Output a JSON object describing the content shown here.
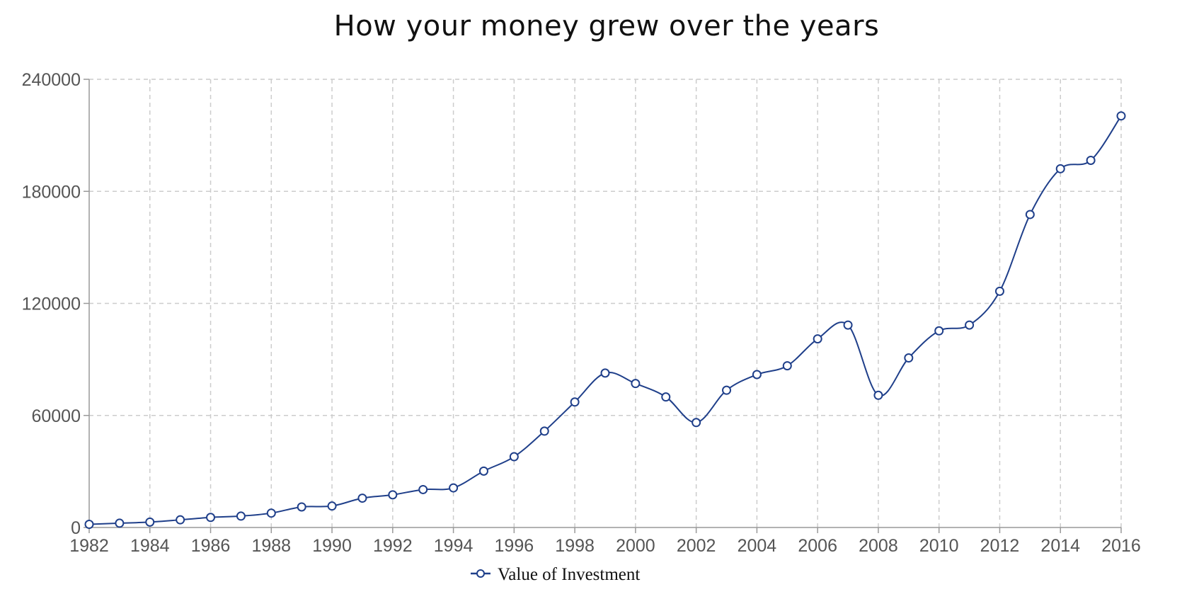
{
  "chart_data": {
    "type": "line",
    "title": "How your money grew over the years",
    "xlabel": "",
    "ylabel": "",
    "xlim": [
      1982,
      2016
    ],
    "ylim": [
      0,
      240000
    ],
    "x_ticks": [
      1982,
      1984,
      1986,
      1988,
      1990,
      1992,
      1994,
      1996,
      1998,
      2000,
      2002,
      2004,
      2006,
      2008,
      2010,
      2012,
      2014,
      2016
    ],
    "y_ticks": [
      0,
      60000,
      120000,
      180000,
      240000
    ],
    "grid": true,
    "grid_style": "dashed",
    "legend_position": "bottom",
    "colors": {
      "line": "#1f3f8a",
      "marker_fill": "#ffffff",
      "grid": "#cccccc",
      "axis": "#999999"
    },
    "series": [
      {
        "name": "Value of Investment",
        "x": [
          1982,
          1983,
          1984,
          1985,
          1986,
          1987,
          1988,
          1989,
          1990,
          1991,
          1992,
          1993,
          1994,
          1995,
          1996,
          1997,
          1998,
          1999,
          2000,
          2001,
          2002,
          2003,
          2004,
          2005,
          2006,
          2007,
          2008,
          2009,
          2010,
          2011,
          2012,
          2013,
          2014,
          2015,
          2016
        ],
        "values": [
          1700,
          2300,
          2900,
          4100,
          5400,
          6100,
          7700,
          11000,
          11500,
          15700,
          17500,
          20300,
          21200,
          30200,
          37900,
          51600,
          67200,
          82700,
          77100,
          69900,
          56200,
          73500,
          81900,
          86600,
          101000,
          108400,
          70800,
          90800,
          105300,
          108400,
          126500,
          167600,
          192100,
          196600,
          220400
        ]
      }
    ]
  }
}
